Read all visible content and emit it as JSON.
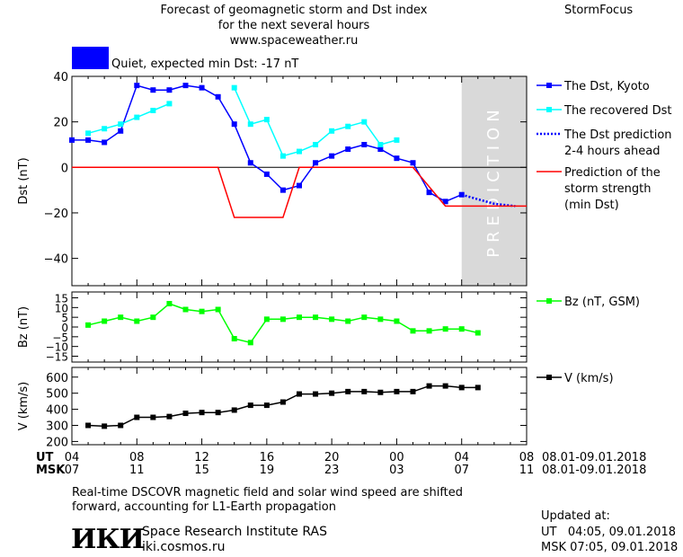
{
  "header": {
    "title_line1": "Forecast of geomagnetic storm and Dst index",
    "title_line2": "for the next several hours",
    "url": "www.spaceweather.ru",
    "brand": "StormFocus"
  },
  "status": {
    "text": "Quiet, expected min Dst: -17 nT",
    "color": "#0000ff"
  },
  "prediction_label": "PREDICTION",
  "footer": {
    "note_line1": "Real-time DSCOVR magnetic field and solar wind speed are shifted",
    "note_line2": "forward, accounting for L1-Earth propagation",
    "logo": "ИКИ",
    "institute": "Space Research Institute RAS",
    "site": "iki.cosmos.ru",
    "updated_label": "Updated at:",
    "updated_ut": "UT   04:05, 09.01.2018",
    "updated_msk": "MSK 07:05, 09.01.2018"
  },
  "chart_data": {
    "type": "line",
    "x_range_hours": [
      0,
      28
    ],
    "prediction_region_hours": [
      24,
      28
    ],
    "x_axis": {
      "ut_label": "UT",
      "msk_label": "MSK",
      "ut_ticks": [
        "04",
        "08",
        "12",
        "16",
        "20",
        "00",
        "04",
        "08"
      ],
      "msk_ticks": [
        "07",
        "11",
        "15",
        "19",
        "23",
        "03",
        "07",
        "11"
      ],
      "ut_range": "08.01-09.01.2018",
      "msk_range": "08.01-09.01.2018"
    },
    "panels": [
      {
        "id": "dst",
        "ylabel": "Dst (nT)",
        "ylim": [
          -52,
          40
        ],
        "yticks": [
          40,
          20,
          0,
          -20,
          -40
        ],
        "zero_line": true,
        "series": [
          {
            "name": "The Dst, Kyoto",
            "color": "#0000ff",
            "style": "line-square",
            "x": [
              0,
              1,
              2,
              3,
              4,
              5,
              6,
              7,
              8,
              9,
              10,
              11,
              12,
              13,
              14,
              15,
              16,
              17,
              18,
              19,
              20,
              21,
              22,
              23,
              24
            ],
            "y": [
              12,
              12,
              11,
              16,
              36,
              34,
              34,
              36,
              35,
              31,
              19,
              2,
              -3,
              -10,
              -8,
              2,
              5,
              8,
              10,
              8,
              4,
              2,
              -11,
              -15,
              -12
            ]
          },
          {
            "name": "The recovered Dst",
            "color": "#00ffff",
            "style": "line-square",
            "segments": [
              {
                "x": [
                  1,
                  2,
                  3,
                  4,
                  5,
                  6
                ],
                "y": [
                  15,
                  17,
                  19,
                  22,
                  25,
                  28
                ]
              },
              {
                "x": [
                  10,
                  11,
                  12,
                  13,
                  14,
                  15,
                  16,
                  17,
                  18,
                  19,
                  20
                ],
                "y": [
                  35,
                  19,
                  21,
                  5,
                  7,
                  10,
                  16,
                  18,
                  20,
                  10,
                  12
                ]
              }
            ]
          },
          {
            "name": "The Dst prediction\n2-4 hours ahead",
            "color": "#0000ff",
            "style": "dotted",
            "x": [
              24,
              25,
              26,
              27.3
            ],
            "y": [
              -12,
              -14,
              -16,
              -17
            ]
          },
          {
            "name": "Prediction of the\nstorm strength\n(min Dst)",
            "color": "#ff0000",
            "style": "line",
            "x": [
              0,
              9,
              10,
              13,
              14,
              21,
              23,
              28
            ],
            "y": [
              0,
              0,
              -22,
              -22,
              0,
              0,
              -17,
              -17
            ]
          }
        ]
      },
      {
        "id": "bz",
        "ylabel": "Bz (nT)",
        "ylim": [
          -18,
          18
        ],
        "yticks": [
          15,
          10,
          5,
          0,
          -5,
          -10,
          -15
        ],
        "series": [
          {
            "name": "Bz (nT, GSM)",
            "color": "#00ff00",
            "style": "line-square",
            "x": [
              1,
              2,
              3,
              4,
              5,
              6,
              7,
              8,
              9,
              10,
              11,
              12,
              13,
              14,
              15,
              16,
              17,
              18,
              19,
              20,
              21,
              22,
              23,
              24,
              25
            ],
            "y": [
              1,
              3,
              5,
              3,
              5,
              12,
              9,
              8,
              9,
              -6,
              -8,
              4,
              4,
              5,
              5,
              4,
              3,
              5,
              4,
              3,
              -2,
              -2,
              -1,
              -1,
              -3
            ]
          }
        ]
      },
      {
        "id": "v",
        "ylabel": "V (km/s)",
        "ylim": [
          180,
          660
        ],
        "yticks": [
          600,
          500,
          400,
          300,
          200
        ],
        "series": [
          {
            "name": "V (km/s)",
            "color": "#000000",
            "style": "line-square",
            "x": [
              1,
              2,
              3,
              4,
              5,
              6,
              7,
              8,
              9,
              10,
              11,
              12,
              13,
              14,
              15,
              16,
              17,
              18,
              19,
              20,
              21,
              22,
              23,
              24,
              25
            ],
            "y": [
              300,
              295,
              300,
              350,
              350,
              355,
              375,
              380,
              380,
              395,
              425,
              425,
              445,
              495,
              495,
              500,
              510,
              510,
              505,
              510,
              510,
              545,
              545,
              535,
              535
            ]
          }
        ]
      }
    ]
  }
}
